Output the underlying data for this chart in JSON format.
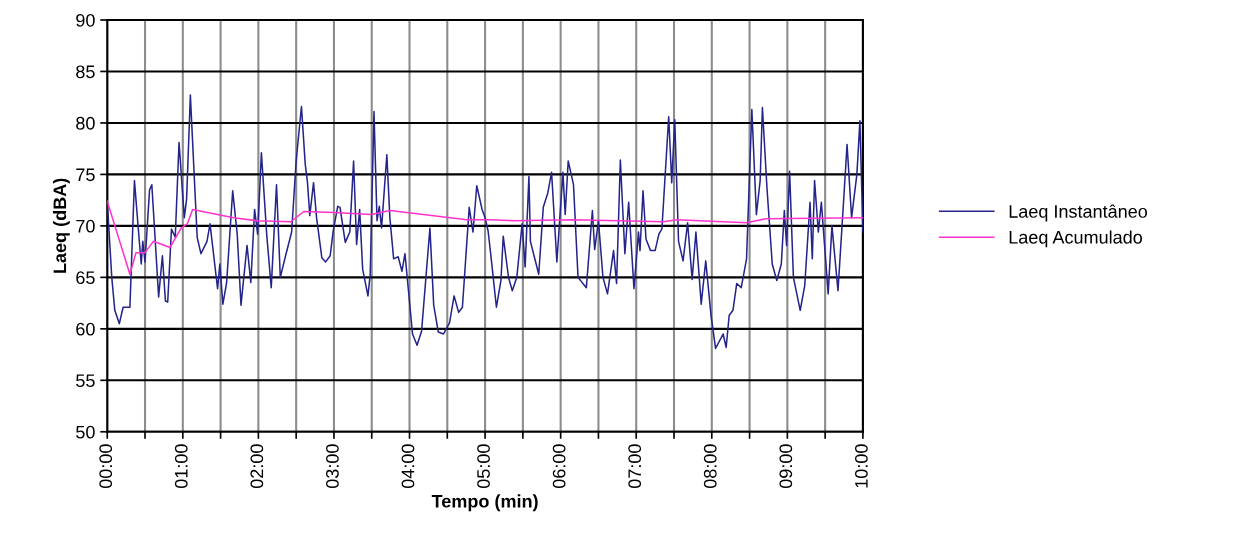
{
  "chart_data": {
    "type": "line",
    "xlabel": "Tempo (min)",
    "ylabel": "Laeq (dBA)",
    "xlim": [
      0,
      10
    ],
    "ylim": [
      50,
      90
    ],
    "xticks": [
      {
        "value": 0,
        "label": "00:00"
      },
      {
        "value": 0.5,
        "label": null
      },
      {
        "value": 1,
        "label": "01:00"
      },
      {
        "value": 1.5,
        "label": null
      },
      {
        "value": 2,
        "label": "02:00"
      },
      {
        "value": 2.5,
        "label": null
      },
      {
        "value": 3,
        "label": "03:00"
      },
      {
        "value": 3.5,
        "label": null
      },
      {
        "value": 4,
        "label": "04:00"
      },
      {
        "value": 4.5,
        "label": null
      },
      {
        "value": 5,
        "label": "05:00"
      },
      {
        "value": 5.5,
        "label": null
      },
      {
        "value": 6,
        "label": "06:00"
      },
      {
        "value": 6.5,
        "label": null
      },
      {
        "value": 7,
        "label": "07:00"
      },
      {
        "value": 7.5,
        "label": null
      },
      {
        "value": 8,
        "label": "08:00"
      },
      {
        "value": 8.5,
        "label": null
      },
      {
        "value": 9,
        "label": "09:00"
      },
      {
        "value": 9.5,
        "label": null
      },
      {
        "value": 10,
        "label": "10:00"
      }
    ],
    "yticks": [
      50,
      55,
      60,
      65,
      70,
      75,
      80,
      85,
      90
    ],
    "grid": true,
    "legend": "right",
    "marker": "none",
    "line_style": "solid",
    "series": [
      {
        "name": "Laeq Instantâneo",
        "color": "#24248a",
        "x": [
          0,
          0.06,
          0.1,
          0.16,
          0.21,
          0.3,
          0.36,
          0.42,
          0.45,
          0.47,
          0.5,
          0.56,
          0.59,
          0.63,
          0.68,
          0.73,
          0.77,
          0.8,
          0.85,
          0.9,
          0.95,
          1.02,
          1.05,
          1.1,
          1.19,
          1.24,
          1.32,
          1.36,
          1.46,
          1.49,
          1.53,
          1.58,
          1.66,
          1.72,
          1.77,
          1.85,
          1.9,
          1.95,
          1.99,
          2.04,
          2.11,
          2.17,
          2.24,
          2.29,
          2.36,
          2.44,
          2.5,
          2.57,
          2.62,
          2.65,
          2.68,
          2.73,
          2.77,
          2.84,
          2.89,
          2.95,
          2.99,
          3.05,
          3.08,
          3.15,
          3.21,
          3.26,
          3.3,
          3.34,
          3.38,
          3.45,
          3.48,
          3.53,
          3.57,
          3.6,
          3.63,
          3.7,
          3.74,
          3.79,
          3.85,
          3.9,
          3.94,
          4.04,
          4.1,
          4.16,
          4.27,
          4.32,
          4.38,
          4.45,
          4.53,
          4.59,
          4.65,
          4.7,
          4.79,
          4.84,
          4.89,
          4.96,
          5.0,
          5.04,
          5.08,
          5.15,
          5.21,
          5.24,
          5.31,
          5.36,
          5.42,
          5.49,
          5.53,
          5.58,
          5.6,
          5.71,
          5.77,
          5.83,
          5.88,
          5.95,
          6.03,
          6.06,
          6.1,
          6.17,
          6.23,
          6.34,
          6.42,
          6.45,
          6.5,
          6.56,
          6.62,
          6.7,
          6.74,
          6.79,
          6.85,
          6.9,
          6.97,
          7.03,
          7.05,
          7.09,
          7.13,
          7.19,
          7.25,
          7.3,
          7.34,
          7.43,
          7.47,
          7.51,
          7.56,
          7.62,
          7.68,
          7.74,
          7.79,
          7.86,
          7.92,
          7.99,
          8.05,
          8.15,
          8.19,
          8.23,
          8.28,
          8.33,
          8.39,
          8.46,
          8.53,
          8.59,
          8.64,
          8.67,
          8.73,
          8.8,
          8.86,
          8.92,
          8.96,
          8.99,
          9.03,
          9.08,
          9.17,
          9.23,
          9.3,
          9.33,
          9.36,
          9.41,
          9.45,
          9.54,
          9.59,
          9.67,
          9.74,
          9.79,
          9.85,
          9.92,
          9.96,
          10.0
        ],
        "values": [
          72.4,
          65.0,
          61.8,
          60.5,
          62.1,
          62.1,
          74.4,
          68.9,
          66.3,
          68.5,
          66.5,
          73.5,
          74.0,
          69.2,
          63.1,
          67.1,
          62.7,
          62.6,
          69.7,
          68.9,
          78.1,
          70.8,
          72.6,
          82.7,
          68.9,
          67.3,
          68.5,
          70.2,
          63.9,
          66.3,
          62.4,
          64.5,
          73.4,
          69.2,
          62.3,
          68.1,
          64.5,
          71.6,
          69.2,
          77.1,
          69.2,
          64.0,
          74.0,
          65.0,
          67.1,
          69.4,
          76.3,
          81.6,
          76.0,
          74.2,
          71.0,
          74.2,
          70.8,
          66.9,
          66.5,
          67.1,
          69.5,
          71.9,
          71.8,
          68.4,
          69.4,
          76.3,
          68.2,
          71.6,
          65.8,
          63.2,
          65.3,
          81.1,
          70.5,
          71.9,
          69.8,
          76.9,
          70.8,
          66.8,
          67.0,
          65.6,
          67.3,
          59.5,
          58.4,
          59.8,
          69.8,
          62.3,
          59.7,
          59.5,
          60.6,
          63.2,
          61.6,
          62.1,
          71.8,
          69.4,
          73.9,
          71.6,
          70.8,
          69.5,
          66.9,
          62.1,
          64.7,
          69.0,
          65.0,
          63.7,
          65.0,
          70.2,
          66.0,
          74.8,
          68.5,
          65.3,
          71.8,
          73.2,
          75.2,
          66.5,
          75.2,
          71.1,
          76.3,
          74.0,
          65.0,
          64.0,
          71.5,
          67.7,
          70.5,
          65.0,
          63.4,
          67.6,
          64.4,
          76.4,
          67.3,
          72.3,
          63.9,
          69.4,
          67.6,
          73.4,
          68.7,
          67.6,
          67.6,
          69.2,
          69.7,
          80.6,
          74.2,
          80.3,
          68.5,
          66.6,
          70.3,
          64.8,
          69.4,
          62.4,
          66.6,
          61.3,
          58.1,
          59.5,
          58.2,
          61.3,
          61.8,
          64.4,
          64.0,
          66.8,
          81.3,
          71.1,
          74.4,
          81.5,
          73.7,
          66.3,
          64.7,
          66.3,
          71.5,
          68.1,
          75.3,
          65.0,
          61.8,
          64.2,
          72.3,
          66.8,
          74.4,
          69.4,
          72.3,
          63.4,
          70.0,
          63.7,
          71.9,
          77.9,
          70.8,
          75.0,
          80.2,
          69.4
        ]
      },
      {
        "name": "Laeq Acumulado",
        "color": "#ff33cc",
        "x": [
          0,
          0.3,
          0.38,
          0.5,
          0.61,
          0.83,
          0.98,
          1.06,
          1.13,
          1.67,
          1.98,
          2.43,
          2.6,
          3.0,
          3.5,
          3.74,
          4.76,
          5.06,
          5.38,
          6.17,
          7.36,
          7.54,
          8.46,
          8.72,
          10.0
        ],
        "values": [
          72.4,
          65.3,
          67.4,
          67.4,
          68.5,
          67.9,
          69.8,
          70.2,
          71.6,
          70.8,
          70.5,
          70.4,
          71.4,
          71.3,
          71.1,
          71.5,
          70.6,
          70.6,
          70.5,
          70.6,
          70.4,
          70.6,
          70.3,
          70.7,
          70.8
        ]
      }
    ]
  }
}
